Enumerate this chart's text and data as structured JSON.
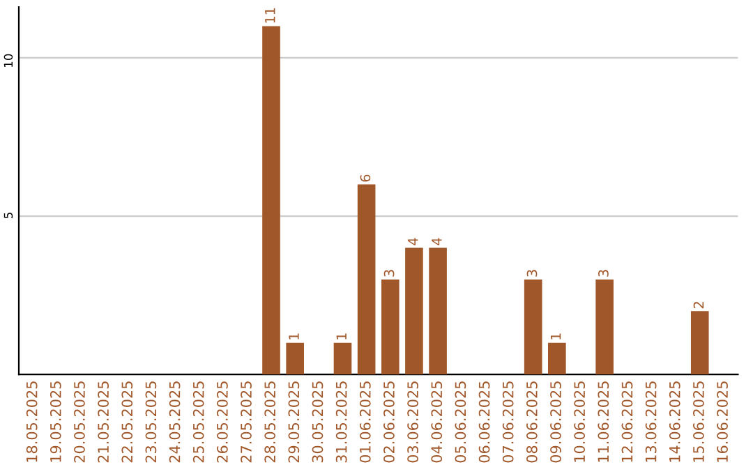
{
  "chart_data": {
    "type": "bar",
    "categories": [
      "18.05.2025",
      "19.05.2025",
      "20.05.2025",
      "21.05.2025",
      "22.05.2025",
      "23.05.2025",
      "24.05.2025",
      "25.05.2025",
      "26.05.2025",
      "27.05.2025",
      "28.05.2025",
      "29.05.2025",
      "30.05.2025",
      "31.05.2025",
      "01.06.2025",
      "02.06.2025",
      "03.06.2025",
      "04.06.2025",
      "05.06.2025",
      "06.06.2025",
      "07.06.2025",
      "08.06.2025",
      "09.06.2025",
      "10.06.2025",
      "11.06.2025",
      "12.06.2025",
      "13.06.2025",
      "14.06.2025",
      "15.06.2025",
      "16.06.2025"
    ],
    "values": [
      0,
      0,
      0,
      0,
      0,
      0,
      0,
      0,
      0,
      0,
      11,
      1,
      0,
      1,
      6,
      3,
      4,
      4,
      0,
      0,
      0,
      3,
      1,
      0,
      3,
      0,
      0,
      0,
      2,
      0
    ],
    "value_labels": [
      null,
      null,
      null,
      null,
      null,
      null,
      null,
      null,
      null,
      null,
      "11",
      "1",
      null,
      "1",
      "6",
      "3",
      "4",
      "4",
      null,
      null,
      null,
      "3",
      "1",
      null,
      "3",
      null,
      null,
      null,
      "2",
      null
    ],
    "color": "#a0572a",
    "ylim": [
      0,
      11.6
    ],
    "yticks": [
      5,
      10
    ],
    "grid": "y"
  }
}
